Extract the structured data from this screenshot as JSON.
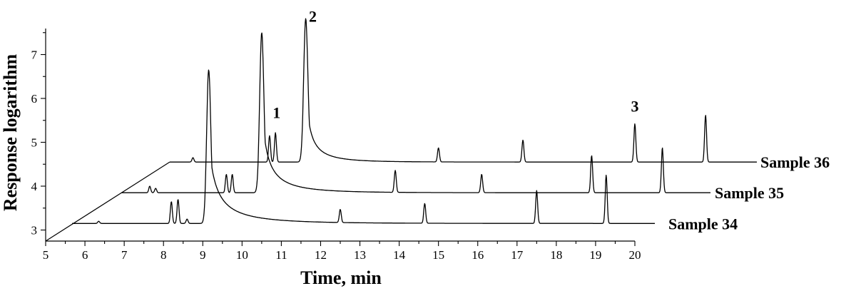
{
  "chart_data": {
    "type": "line",
    "title": "",
    "xlabel": "Time, min",
    "ylabel": "Response logarithm",
    "xlim": [
      5,
      21
    ],
    "ylim": [
      2.8,
      7.6
    ],
    "x_ticks": [
      "5",
      "6",
      "7",
      "8",
      "9",
      "10",
      "11",
      "12",
      "13",
      "14",
      "15",
      "16",
      "17",
      "18",
      "19",
      "20"
    ],
    "y_ticks": [
      "3",
      "4",
      "5",
      "6",
      "7"
    ],
    "layout": "stacked-offset chromatograms",
    "series": [
      {
        "name": "Sample 34",
        "baseline": 3.15,
        "peaks": [
          {
            "x": 6.35,
            "y": 3.2
          },
          {
            "x": 8.2,
            "y": 3.65
          },
          {
            "x": 8.37,
            "y": 3.7
          },
          {
            "x": 8.6,
            "y": 3.25
          },
          {
            "x": 9.15,
            "y": 6.65
          },
          {
            "x": 12.5,
            "y": 3.45
          },
          {
            "x": 14.65,
            "y": 3.6
          },
          {
            "x": 17.5,
            "y": 3.9
          },
          {
            "x": 19.27,
            "y": 4.25
          }
        ]
      },
      {
        "name": "Sample 35",
        "baseline": 3.85,
        "peaks": [
          {
            "x": 7.65,
            "y": 4.0
          },
          {
            "x": 7.8,
            "y": 3.95
          },
          {
            "x": 9.6,
            "y": 4.27
          },
          {
            "x": 9.75,
            "y": 4.27
          },
          {
            "x": 10.5,
            "y": 7.5
          },
          {
            "x": 13.9,
            "y": 4.35
          },
          {
            "x": 16.1,
            "y": 4.27
          },
          {
            "x": 18.9,
            "y": 4.7
          },
          {
            "x": 20.7,
            "y": 4.88
          }
        ]
      },
      {
        "name": "Sample 36",
        "baseline": 4.55,
        "peaks": [
          {
            "x": 8.75,
            "y": 4.65
          },
          {
            "x": 10.7,
            "y": 5.15
          },
          {
            "x": 10.85,
            "y": 5.22
          },
          {
            "x": 11.62,
            "y": 7.82
          },
          {
            "x": 15.0,
            "y": 4.87
          },
          {
            "x": 17.15,
            "y": 5.05
          },
          {
            "x": 20.0,
            "y": 5.42
          },
          {
            "x": 21.8,
            "y": 5.62
          }
        ]
      }
    ],
    "annotations": [
      {
        "text": "1",
        "x": 10.88,
        "y": 5.55
      },
      {
        "text": "2",
        "x": 11.8,
        "y": 7.75
      },
      {
        "text": "3",
        "x": 20.0,
        "y": 5.7
      }
    ]
  }
}
